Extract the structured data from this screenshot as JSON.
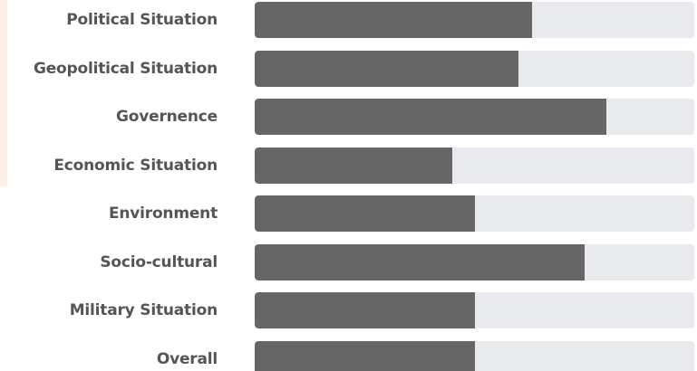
{
  "chart_data": {
    "type": "bar",
    "orientation": "horizontal",
    "categories": [
      "Political Situation",
      "Geopolitical Situation",
      "Governence",
      "Economic Situation",
      "Environment",
      "Socio-cultural",
      "Military Situation",
      "Overall"
    ],
    "values": [
      63,
      60,
      80,
      45,
      50,
      75,
      50,
      50
    ],
    "xlim": [
      0,
      100
    ],
    "grid": false,
    "legend": "none",
    "colors": {
      "bar": "#666666",
      "track": "#e8eaee",
      "label": "#555555",
      "accent": "#fdeee6"
    }
  }
}
